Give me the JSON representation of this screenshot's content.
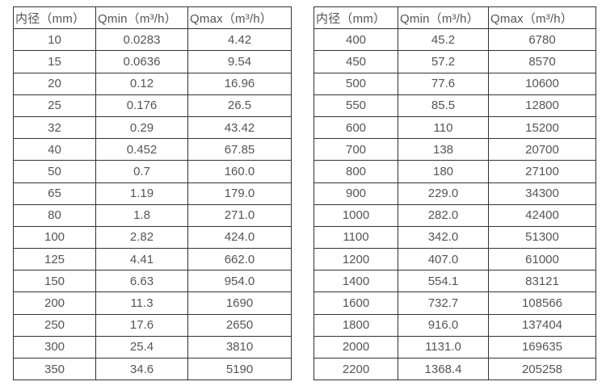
{
  "colors": {
    "border": "#333333",
    "text": "#555555",
    "background": "#ffffff"
  },
  "tables": [
    {
      "name": "flow-spec-table-left",
      "headers": [
        "内径（mm）",
        "Qmin（m³/h）",
        "Qmax（m³/h）"
      ],
      "rows": [
        [
          "10",
          "0.0283",
          "4.42"
        ],
        [
          "15",
          "0.0636",
          "9.54"
        ],
        [
          "20",
          "0.12",
          "16.96"
        ],
        [
          "25",
          "0.176",
          "26.5"
        ],
        [
          "32",
          "0.29",
          "43.42"
        ],
        [
          "40",
          "0.452",
          "67.85"
        ],
        [
          "50",
          "0.7",
          "160.0"
        ],
        [
          "65",
          "1.19",
          "179.0"
        ],
        [
          "80",
          "1.8",
          "271.0"
        ],
        [
          "100",
          "2.82",
          "424.0"
        ],
        [
          "125",
          "4.41",
          "662.0"
        ],
        [
          "150",
          "6.63",
          "954.0"
        ],
        [
          "200",
          "11.3",
          "1690"
        ],
        [
          "250",
          "17.6",
          "2650"
        ],
        [
          "300",
          "25.4",
          "3810"
        ],
        [
          "350",
          "34.6",
          "5190"
        ]
      ]
    },
    {
      "name": "flow-spec-table-right",
      "headers": [
        "内径（mm）",
        "Qmin（m³/h）",
        "Qmax（m³/h）"
      ],
      "rows": [
        [
          "400",
          "45.2",
          "6780"
        ],
        [
          "450",
          "57.2",
          "8570"
        ],
        [
          "500",
          "77.6",
          "10600"
        ],
        [
          "550",
          "85.5",
          "12800"
        ],
        [
          "600",
          "110",
          "15200"
        ],
        [
          "700",
          "138",
          "20700"
        ],
        [
          "800",
          "180",
          "27100"
        ],
        [
          "900",
          "229.0",
          "34300"
        ],
        [
          "1000",
          "282.0",
          "42400"
        ],
        [
          "1100",
          "342.0",
          "51300"
        ],
        [
          "1200",
          "407.0",
          "61000"
        ],
        [
          "1400",
          "554.1",
          "83121"
        ],
        [
          "1600",
          "732.7",
          "108566"
        ],
        [
          "1800",
          "916.0",
          "137404"
        ],
        [
          "2000",
          "1131.0",
          "169635"
        ],
        [
          "2200",
          "1368.4",
          "205258"
        ]
      ]
    }
  ]
}
